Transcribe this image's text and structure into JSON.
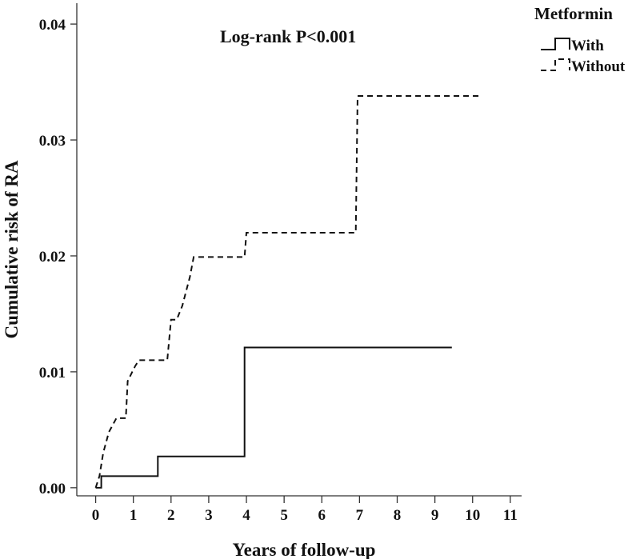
{
  "chart_data": {
    "type": "line",
    "step": true,
    "xlabel": "Years of follow-up",
    "ylabel": "Cumulative risk of RA",
    "xlim": [
      -0.5,
      11.3
    ],
    "ylim": [
      -0.0007,
      0.0418
    ],
    "x_ticks": [
      0,
      1,
      2,
      3,
      4,
      5,
      6,
      7,
      8,
      9,
      10,
      11
    ],
    "x_tick_labels": [
      "0",
      "1",
      "2",
      "3",
      "4",
      "5",
      "6",
      "7",
      "8",
      "9",
      "10",
      "11"
    ],
    "y_ticks": [
      0.0,
      0.01,
      0.02,
      0.03,
      0.04
    ],
    "y_tick_labels": [
      "0.00",
      "0.01",
      "0.02",
      "0.03",
      "0.04"
    ],
    "annotation": "Log-rank P<0.001",
    "legend": {
      "title": "Metformin",
      "position": "top-right",
      "entries": [
        "With",
        "Without"
      ]
    },
    "series": [
      {
        "name": "With",
        "line_style": "solid",
        "x": [
          0.0,
          0.15,
          0.15,
          1.65,
          1.65,
          3.95,
          3.95,
          9.45
        ],
        "y": [
          0.0,
          0.0,
          0.001,
          0.001,
          0.0027,
          0.0027,
          0.0121,
          0.0121
        ]
      },
      {
        "name": "Without",
        "line_style": "dashed",
        "x": [
          0.0,
          0.1,
          0.2,
          0.35,
          0.55,
          0.8,
          0.85,
          1.05,
          1.15,
          1.9,
          2.0,
          2.15,
          2.3,
          2.5,
          2.6,
          3.95,
          4.0,
          6.9,
          6.95,
          10.2
        ],
        "y": [
          0.0,
          0.001,
          0.003,
          0.0048,
          0.006,
          0.006,
          0.0092,
          0.0105,
          0.011,
          0.011,
          0.0145,
          0.0145,
          0.0157,
          0.0182,
          0.0199,
          0.0199,
          0.022,
          0.022,
          0.0338,
          0.0338
        ]
      }
    ]
  }
}
